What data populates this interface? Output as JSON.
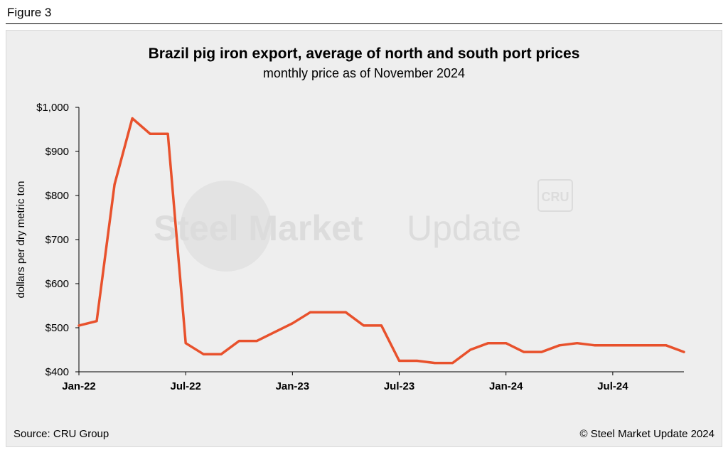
{
  "figure_label": "Figure 3",
  "source": "Source: CRU Group",
  "copyright": "© Steel Market Update 2024",
  "watermark": {
    "text_bold": "Steel Market",
    "text_light": "Update",
    "badge": "CRU"
  },
  "colors": {
    "line": "#e8512c",
    "panel": "#eeeeee",
    "axis": "#000000"
  },
  "chart_data": {
    "type": "line",
    "title": "Brazil pig iron export, average of north and south port prices",
    "subtitle": "monthly price as of November 2024",
    "ylabel": "dollars per dry metric ton",
    "xlabel": "",
    "ylim": [
      400,
      1000
    ],
    "yticks": [
      400,
      500,
      600,
      700,
      800,
      900,
      1000
    ],
    "ytick_labels": [
      "$400",
      "$500",
      "$600",
      "$700",
      "$800",
      "$900",
      "$1,000"
    ],
    "xtick_labels": [
      {
        "index": 0,
        "label": "Jan-22"
      },
      {
        "index": 6,
        "label": "Jul-22"
      },
      {
        "index": 12,
        "label": "Jan-23"
      },
      {
        "index": 18,
        "label": "Jul-23"
      },
      {
        "index": 24,
        "label": "Jan-24"
      },
      {
        "index": 30,
        "label": "Jul-24"
      }
    ],
    "grid": false,
    "legend": "none",
    "x": [
      "Jan-22",
      "Feb-22",
      "Mar-22",
      "Apr-22",
      "May-22",
      "Jun-22",
      "Jul-22",
      "Aug-22",
      "Sep-22",
      "Oct-22",
      "Nov-22",
      "Dec-22",
      "Jan-23",
      "Feb-23",
      "Mar-23",
      "Apr-23",
      "May-23",
      "Jun-23",
      "Jul-23",
      "Aug-23",
      "Sep-23",
      "Oct-23",
      "Nov-23",
      "Dec-23",
      "Jan-24",
      "Feb-24",
      "Mar-24",
      "Apr-24",
      "May-24",
      "Jun-24",
      "Jul-24",
      "Aug-24",
      "Sep-24",
      "Oct-24",
      "Nov-24"
    ],
    "series": [
      {
        "values": [
          505,
          515,
          825,
          975,
          940,
          940,
          465,
          440,
          440,
          470,
          470,
          490,
          510,
          535,
          535,
          535,
          505,
          505,
          425,
          425,
          420,
          420,
          450,
          465,
          465,
          445,
          445,
          460,
          465,
          460,
          460,
          460,
          460,
          460,
          445
        ]
      }
    ]
  }
}
